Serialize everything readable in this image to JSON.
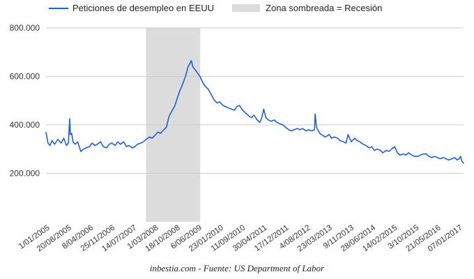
{
  "legend": {
    "series_label": "Peticiones de desempleo en EEUU",
    "recession_label": "Zona sombreada = Recesión"
  },
  "footer": "inbestia.com - Fuente: US Department of Labor",
  "colors": {
    "line": "#1f5fd6",
    "recession": "#dcdcdc",
    "grid": "#cccccc"
  },
  "chart_data": {
    "type": "line",
    "xlabel": "",
    "ylabel": "",
    "ylim": [
      0,
      800000
    ],
    "y_ticks": [
      200000,
      400000,
      600000,
      800000
    ],
    "y_tick_labels": [
      "200.000",
      "400.000",
      "600.000",
      "800.000"
    ],
    "x_range": [
      "2005-01-01",
      "2017-03-01"
    ],
    "x_tick_labels": [
      "1/01/2005",
      "20/08/2005",
      "8/04/2006",
      "25/11/2006",
      "14/07/2007",
      "1/03/2008",
      "18/10/2008",
      "6/06/2009",
      "23/01/2010",
      "11/09/2010",
      "30/04/2011",
      "17/12/2011",
      "4/08/2012",
      "23/03/2013",
      "9/11/2013",
      "28/06/2014",
      "14/02/2015",
      "3/10/2015",
      "21/05/2016",
      "07/01/2017"
    ],
    "recession": {
      "start": "2007-12-01",
      "end": "2009-06-30"
    },
    "series": [
      {
        "name": "Peticiones de desempleo en EEUU",
        "points": [
          [
            "2005-01-01",
            370000
          ],
          [
            "2005-01-22",
            325000
          ],
          [
            "2005-02-12",
            315000
          ],
          [
            "2005-03-05",
            335000
          ],
          [
            "2005-04-02",
            320000
          ],
          [
            "2005-05-07",
            340000
          ],
          [
            "2005-06-11",
            325000
          ],
          [
            "2005-07-09",
            345000
          ],
          [
            "2005-08-06",
            315000
          ],
          [
            "2005-08-27",
            325000
          ],
          [
            "2005-09-10",
            425000
          ],
          [
            "2005-09-17",
            360000
          ],
          [
            "2005-10-01",
            365000
          ],
          [
            "2005-10-15",
            330000
          ],
          [
            "2005-11-05",
            320000
          ],
          [
            "2005-12-03",
            330000
          ],
          [
            "2006-01-07",
            290000
          ],
          [
            "2006-02-04",
            300000
          ],
          [
            "2006-03-04",
            305000
          ],
          [
            "2006-04-08",
            310000
          ],
          [
            "2006-05-06",
            325000
          ],
          [
            "2006-06-03",
            315000
          ],
          [
            "2006-07-01",
            320000
          ],
          [
            "2006-08-05",
            330000
          ],
          [
            "2006-09-02",
            310000
          ],
          [
            "2006-10-07",
            305000
          ],
          [
            "2006-11-04",
            320000
          ],
          [
            "2006-12-02",
            325000
          ],
          [
            "2007-01-06",
            315000
          ],
          [
            "2007-02-03",
            330000
          ],
          [
            "2007-03-03",
            320000
          ],
          [
            "2007-04-07",
            330000
          ],
          [
            "2007-05-05",
            310000
          ],
          [
            "2007-06-02",
            315000
          ],
          [
            "2007-07-07",
            305000
          ],
          [
            "2007-08-04",
            310000
          ],
          [
            "2007-09-01",
            320000
          ],
          [
            "2007-10-06",
            325000
          ],
          [
            "2007-11-03",
            330000
          ],
          [
            "2007-12-01",
            340000
          ],
          [
            "2008-01-05",
            350000
          ],
          [
            "2008-02-02",
            345000
          ],
          [
            "2008-03-01",
            355000
          ],
          [
            "2008-04-05",
            370000
          ],
          [
            "2008-05-03",
            365000
          ],
          [
            "2008-06-07",
            380000
          ],
          [
            "2008-07-05",
            390000
          ],
          [
            "2008-08-02",
            435000
          ],
          [
            "2008-09-06",
            460000
          ],
          [
            "2008-10-04",
            480000
          ],
          [
            "2008-11-01",
            515000
          ],
          [
            "2008-11-29",
            545000
          ],
          [
            "2008-12-27",
            570000
          ],
          [
            "2009-01-24",
            600000
          ],
          [
            "2009-02-21",
            640000
          ],
          [
            "2009-03-28",
            665000
          ],
          [
            "2009-04-11",
            640000
          ],
          [
            "2009-05-02",
            630000
          ],
          [
            "2009-05-30",
            615000
          ],
          [
            "2009-06-27",
            600000
          ],
          [
            "2009-07-25",
            575000
          ],
          [
            "2009-08-22",
            560000
          ],
          [
            "2009-09-26",
            545000
          ],
          [
            "2009-10-24",
            525000
          ],
          [
            "2009-11-21",
            505000
          ],
          [
            "2009-12-26",
            490000
          ],
          [
            "2010-01-23",
            495000
          ],
          [
            "2010-02-27",
            480000
          ],
          [
            "2010-03-27",
            475000
          ],
          [
            "2010-04-24",
            470000
          ],
          [
            "2010-05-29",
            465000
          ],
          [
            "2010-06-26",
            460000
          ],
          [
            "2010-07-24",
            475000
          ],
          [
            "2010-08-21",
            480000
          ],
          [
            "2010-09-25",
            460000
          ],
          [
            "2010-10-23",
            450000
          ],
          [
            "2010-11-20",
            440000
          ],
          [
            "2010-12-25",
            430000
          ],
          [
            "2011-01-22",
            440000
          ],
          [
            "2011-02-26",
            420000
          ],
          [
            "2011-03-26",
            410000
          ],
          [
            "2011-04-16",
            430000
          ],
          [
            "2011-05-07",
            465000
          ],
          [
            "2011-05-28",
            430000
          ],
          [
            "2011-06-25",
            420000
          ],
          [
            "2011-07-23",
            415000
          ],
          [
            "2011-08-27",
            420000
          ],
          [
            "2011-09-24",
            410000
          ],
          [
            "2011-10-22",
            405000
          ],
          [
            "2011-11-26",
            400000
          ],
          [
            "2011-12-24",
            390000
          ],
          [
            "2012-01-28",
            380000
          ],
          [
            "2012-02-25",
            375000
          ],
          [
            "2012-03-24",
            380000
          ],
          [
            "2012-04-28",
            385000
          ],
          [
            "2012-05-26",
            380000
          ],
          [
            "2012-06-23",
            385000
          ],
          [
            "2012-07-28",
            375000
          ],
          [
            "2012-08-25",
            380000
          ],
          [
            "2012-09-29",
            375000
          ],
          [
            "2012-10-27",
            380000
          ],
          [
            "2012-11-03",
            445000
          ],
          [
            "2012-11-17",
            390000
          ],
          [
            "2012-12-22",
            365000
          ],
          [
            "2013-01-26",
            355000
          ],
          [
            "2013-02-23",
            350000
          ],
          [
            "2013-03-30",
            360000
          ],
          [
            "2013-04-27",
            345000
          ],
          [
            "2013-05-25",
            350000
          ],
          [
            "2013-06-29",
            345000
          ],
          [
            "2013-07-27",
            335000
          ],
          [
            "2013-08-31",
            330000
          ],
          [
            "2013-09-28",
            325000
          ],
          [
            "2013-10-19",
            360000
          ],
          [
            "2013-11-23",
            330000
          ],
          [
            "2013-12-28",
            345000
          ],
          [
            "2014-01-25",
            335000
          ],
          [
            "2014-02-22",
            330000
          ],
          [
            "2014-03-29",
            320000
          ],
          [
            "2014-04-26",
            315000
          ],
          [
            "2014-05-31",
            305000
          ],
          [
            "2014-06-28",
            310000
          ],
          [
            "2014-07-26",
            295000
          ],
          [
            "2014-08-30",
            300000
          ],
          [
            "2014-09-27",
            295000
          ],
          [
            "2014-10-25",
            285000
          ],
          [
            "2014-11-29",
            295000
          ],
          [
            "2014-12-27",
            290000
          ],
          [
            "2015-01-24",
            300000
          ],
          [
            "2015-02-28",
            310000
          ],
          [
            "2015-03-28",
            285000
          ],
          [
            "2015-04-25",
            275000
          ],
          [
            "2015-05-30",
            280000
          ],
          [
            "2015-06-27",
            275000
          ],
          [
            "2015-07-25",
            285000
          ],
          [
            "2015-08-29",
            275000
          ],
          [
            "2015-09-26",
            270000
          ],
          [
            "2015-10-31",
            270000
          ],
          [
            "2015-11-28",
            275000
          ],
          [
            "2015-12-26",
            280000
          ],
          [
            "2016-01-30",
            280000
          ],
          [
            "2016-02-27",
            270000
          ],
          [
            "2016-03-26",
            265000
          ],
          [
            "2016-04-30",
            270000
          ],
          [
            "2016-05-28",
            265000
          ],
          [
            "2016-06-25",
            260000
          ],
          [
            "2016-07-30",
            265000
          ],
          [
            "2016-08-27",
            260000
          ],
          [
            "2016-09-24",
            255000
          ],
          [
            "2016-10-29",
            260000
          ],
          [
            "2016-11-26",
            265000
          ],
          [
            "2016-12-24",
            255000
          ],
          [
            "2017-01-14",
            260000
          ],
          [
            "2017-01-28",
            270000
          ],
          [
            "2017-02-11",
            250000
          ],
          [
            "2017-02-25",
            245000
          ],
          [
            "2017-03-01",
            240000
          ]
        ]
      }
    ]
  }
}
